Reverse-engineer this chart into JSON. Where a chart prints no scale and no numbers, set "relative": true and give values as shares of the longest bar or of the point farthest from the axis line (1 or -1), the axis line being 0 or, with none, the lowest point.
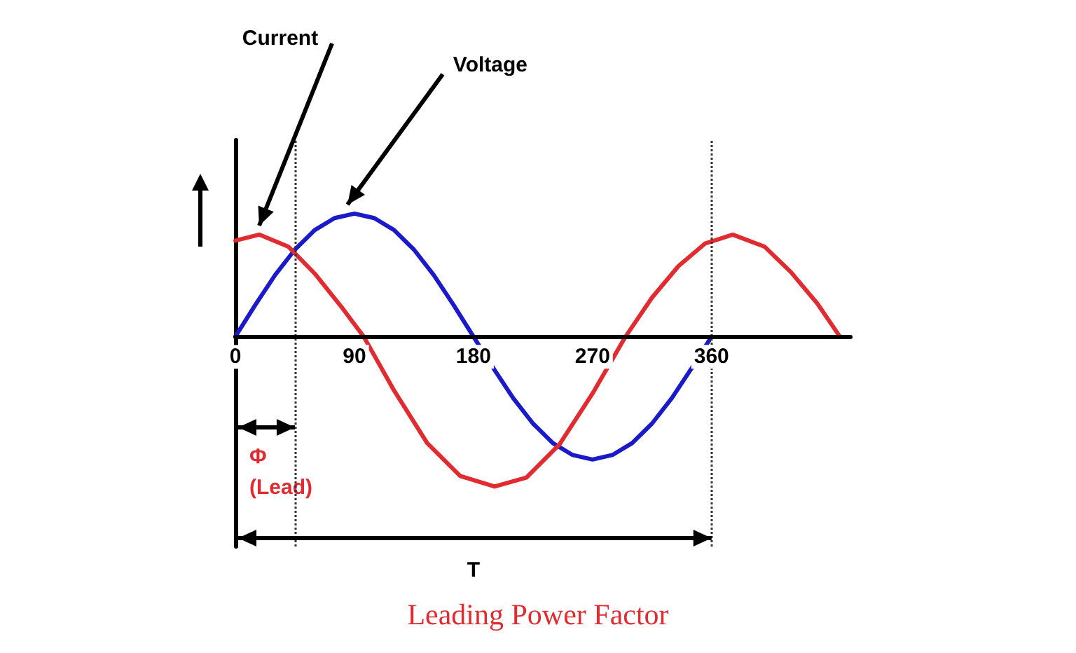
{
  "chart_data": {
    "type": "line",
    "title": "Leading Power Factor",
    "relative": true,
    "legend": false,
    "grid": false,
    "marker": "none",
    "line_style": "solid",
    "xlim": [
      0,
      465
    ],
    "xticks": [
      0,
      90,
      180,
      270,
      360
    ],
    "series": [
      {
        "name": "Voltage",
        "color": "#1a1ac8",
        "x": [
          0,
          15,
          30,
          45,
          60,
          75,
          90,
          105,
          120,
          135,
          150,
          165,
          180,
          195,
          210,
          225,
          240,
          255,
          270,
          285,
          300,
          315,
          330,
          345,
          360
        ],
        "values": [
          0,
          0.21,
          0.41,
          0.58,
          0.71,
          0.79,
          0.82,
          0.79,
          0.71,
          0.58,
          0.41,
          0.21,
          0,
          -0.21,
          -0.41,
          -0.58,
          -0.71,
          -0.79,
          -0.82,
          -0.79,
          -0.71,
          -0.58,
          -0.41,
          -0.21,
          0
        ]
      },
      {
        "name": "Current",
        "color": "#e02b30",
        "x": [
          0,
          18,
          40,
          60,
          80,
          97,
          120,
          145,
          170,
          196,
          220,
          245,
          270,
          295,
          315,
          335,
          355,
          376,
          400,
          420,
          440,
          457
        ],
        "values": [
          0.64,
          0.68,
          0.6,
          0.42,
          0.2,
          0,
          -0.36,
          -0.71,
          -0.93,
          -1,
          -0.94,
          -0.72,
          -0.38,
          0,
          0.26,
          0.47,
          0.62,
          0.68,
          0.6,
          0.43,
          0.22,
          0
        ]
      }
    ],
    "ref_lines": [
      {
        "axis": "x",
        "value": 45,
        "line_style": "dotted",
        "color": "#333333"
      },
      {
        "axis": "x",
        "value": 360,
        "line_style": "dotted",
        "color": "#333333"
      }
    ],
    "annotations": [
      "Φ\n(Lead)",
      "T"
    ]
  }
}
